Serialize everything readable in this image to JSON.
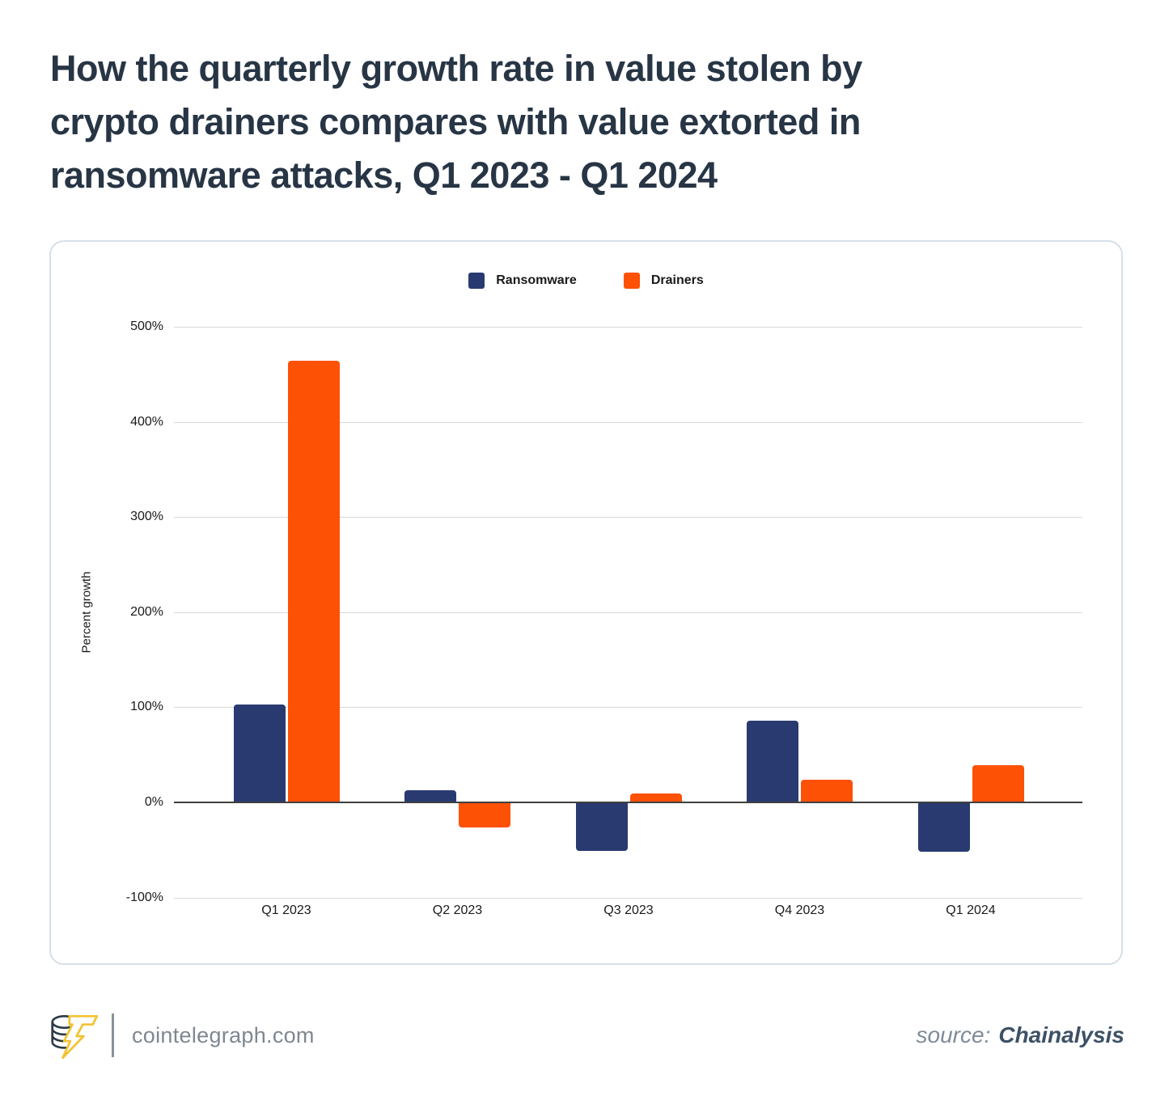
{
  "title_lines": [
    "How the quarterly growth rate in value stolen by",
    "crypto drainers compares with value extorted in",
    "ransomware attacks, Q1 2023 - Q1 2024"
  ],
  "legend": [
    {
      "label": "Ransomware",
      "color": "#283A70"
    },
    {
      "label": "Drainers",
      "color": "#FD5106"
    }
  ],
  "chart_data": {
    "type": "bar",
    "title": "How the quarterly growth rate in value stolen by crypto drainers compares with value extorted in ransomware attacks, Q1 2023 - Q1 2024",
    "categories": [
      "Q1 2023",
      "Q2 2023",
      "Q3 2023",
      "Q4 2023",
      "Q1 2024"
    ],
    "series": [
      {
        "name": "Ransomware",
        "color": "#283A70",
        "values": [
          103,
          13,
          -51,
          86,
          -52
        ]
      },
      {
        "name": "Drainers",
        "color": "#FD5106",
        "values": [
          464,
          -26,
          9,
          24,
          39
        ]
      }
    ],
    "xlabel": "",
    "ylabel": "Percent growth",
    "yticks": [
      500,
      400,
      300,
      200,
      100,
      0,
      -100
    ],
    "ytick_labels": [
      "500%",
      "400%",
      "300%",
      "200%",
      "100%",
      "0%",
      "-100%"
    ],
    "ylim": [
      -100,
      500
    ],
    "grid": true,
    "legend_position": "top-center"
  },
  "footer": {
    "site": "cointelegraph.com",
    "source_label": "source:",
    "source_name": "Chainalysis"
  },
  "colors": {
    "title": "#273545",
    "panel_border": "#d6dfe7",
    "gridline": "#d9d9d9",
    "axis": "#3f3f3f",
    "tick": "#1a1a1a",
    "footer": "#7f8791",
    "source_label": "#7e8b98",
    "source_name": "#3d5166",
    "logo_dark": "#2c3a47",
    "logo_gold": "#f2c231"
  }
}
